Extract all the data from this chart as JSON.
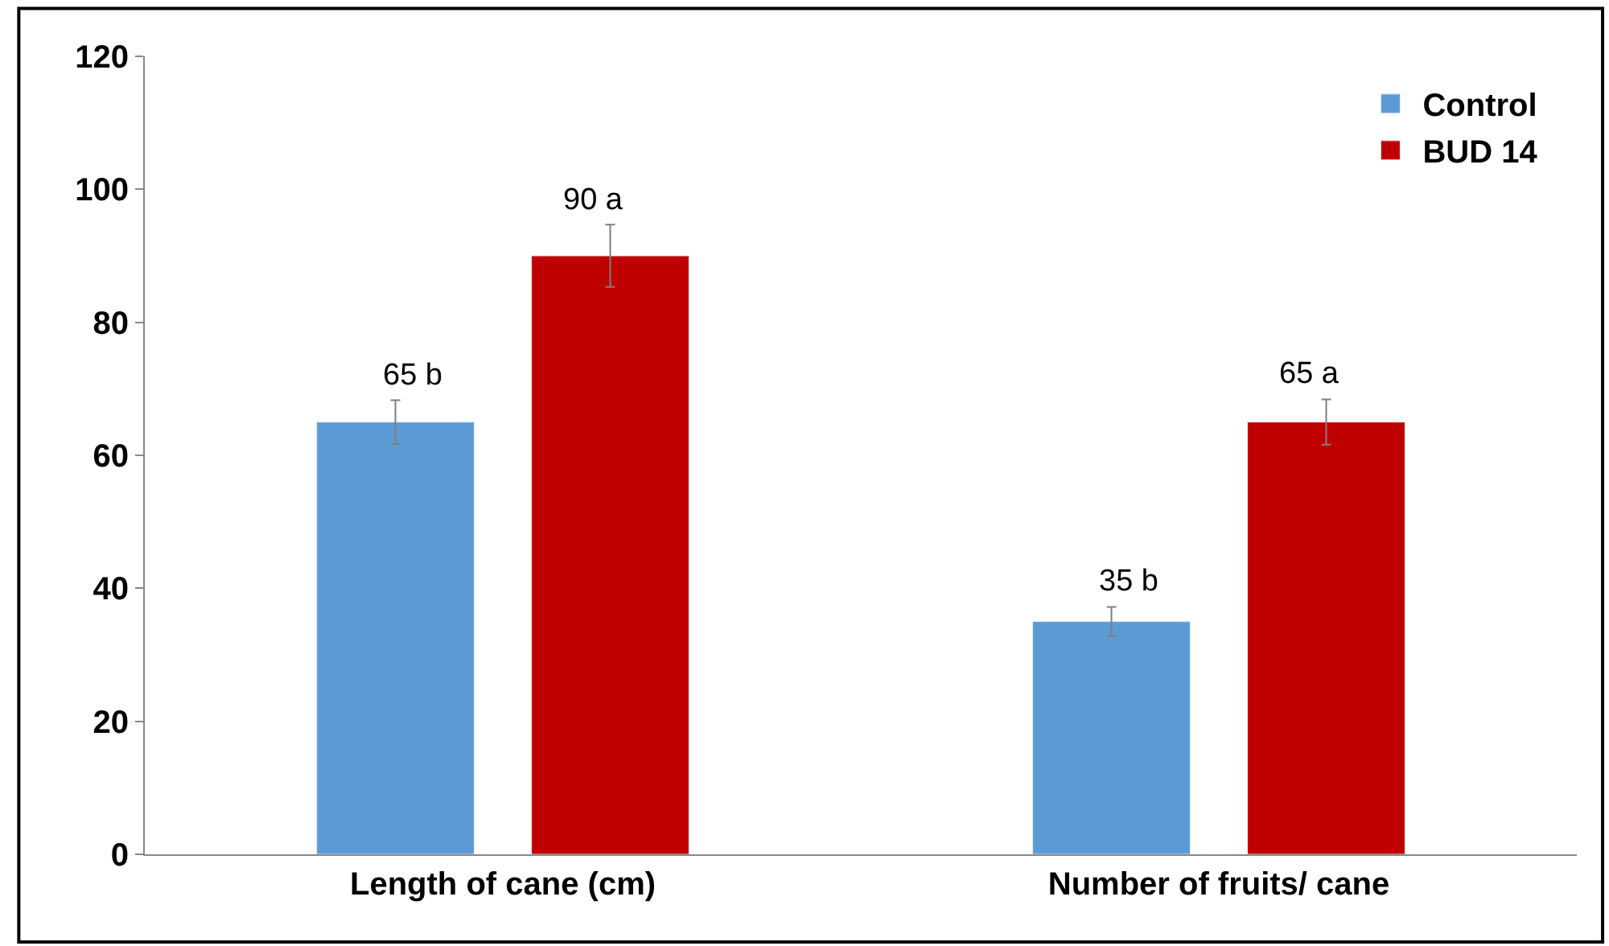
{
  "chart_data": {
    "type": "bar",
    "categories": [
      "Length of cane (cm)",
      "Number of fruits/ cane"
    ],
    "series": [
      {
        "name": "Control",
        "color": "#5b9bd5",
        "values": [
          65,
          35
        ],
        "errors": [
          3.3,
          2.2
        ],
        "value_labels": [
          "65 b",
          "35 b"
        ]
      },
      {
        "name": "BUD 14",
        "color": "#c00000",
        "values": [
          90,
          65
        ],
        "errors": [
          4.7,
          3.4
        ],
        "value_labels": [
          "90 a",
          "65 a"
        ]
      }
    ],
    "ylim": [
      0,
      120
    ],
    "yticks": [
      0,
      20,
      40,
      60,
      80,
      100,
      120
    ],
    "legend": "top right"
  }
}
